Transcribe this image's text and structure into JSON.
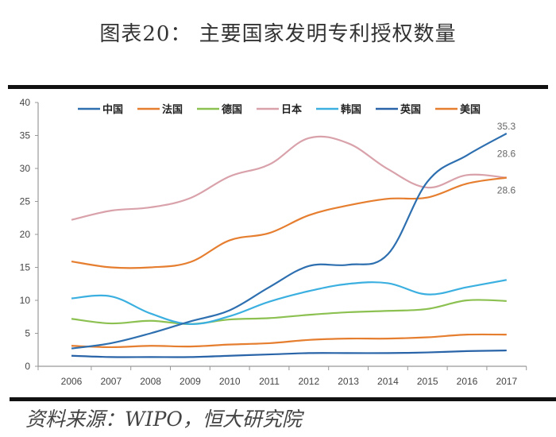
{
  "title": "图表20： 主要国家发明专利授权数量",
  "source": "资料来源：WIPO，恒大研究院",
  "chart_data": {
    "type": "line",
    "title": "图表20： 主要国家发明专利授权数量",
    "xlabel": "",
    "ylabel": "",
    "x": [
      "2006",
      "2007",
      "2008",
      "2009",
      "2010",
      "2011",
      "2012",
      "2013",
      "2014",
      "2015",
      "2016",
      "2017"
    ],
    "ylim": [
      0,
      40
    ],
    "yticks": [
      0,
      5,
      10,
      15,
      20,
      25,
      30,
      35,
      40
    ],
    "grid": false,
    "legend_position": "top",
    "series": [
      {
        "name": "中国",
        "color": "#2e6fb0",
        "values": [
          2.7,
          3.5,
          5.0,
          6.8,
          8.5,
          12.0,
          15.2,
          15.4,
          17.0,
          28.0,
          32.0,
          35.3
        ],
        "end_label": "35.3"
      },
      {
        "name": "法国",
        "color": "#e67e30",
        "values": [
          15.9,
          15.0,
          15.0,
          15.8,
          19.1,
          20.2,
          22.9,
          24.4,
          25.4,
          25.6,
          27.7,
          28.6
        ],
        "end_label": "28.6"
      },
      {
        "name": "德国",
        "color": "#8cc152",
        "values": [
          7.2,
          6.5,
          6.9,
          6.4,
          7.1,
          7.3,
          7.8,
          8.2,
          8.4,
          8.7,
          10.0,
          9.9
        ]
      },
      {
        "name": "日本",
        "color": "#d9a2ab",
        "values": [
          22.2,
          23.6,
          24.1,
          25.5,
          28.8,
          30.6,
          34.6,
          33.8,
          29.9,
          27.1,
          29.0,
          28.6
        ],
        "end_label": "28.6"
      },
      {
        "name": "韩国",
        "color": "#3bb0e0",
        "values": [
          10.3,
          10.6,
          8.0,
          6.4,
          7.6,
          9.8,
          11.4,
          12.5,
          12.6,
          10.9,
          12.0,
          13.1
        ]
      },
      {
        "name": "英国",
        "color": "#2a64a8",
        "values": [
          1.6,
          1.4,
          1.4,
          1.4,
          1.6,
          1.8,
          2.0,
          2.0,
          2.0,
          2.1,
          2.3,
          2.4
        ]
      },
      {
        "name": "美国",
        "color": "#e67e30",
        "values": [
          3.1,
          2.9,
          3.1,
          3.0,
          3.3,
          3.5,
          4.0,
          4.2,
          4.2,
          4.4,
          4.8,
          4.8
        ]
      }
    ]
  }
}
